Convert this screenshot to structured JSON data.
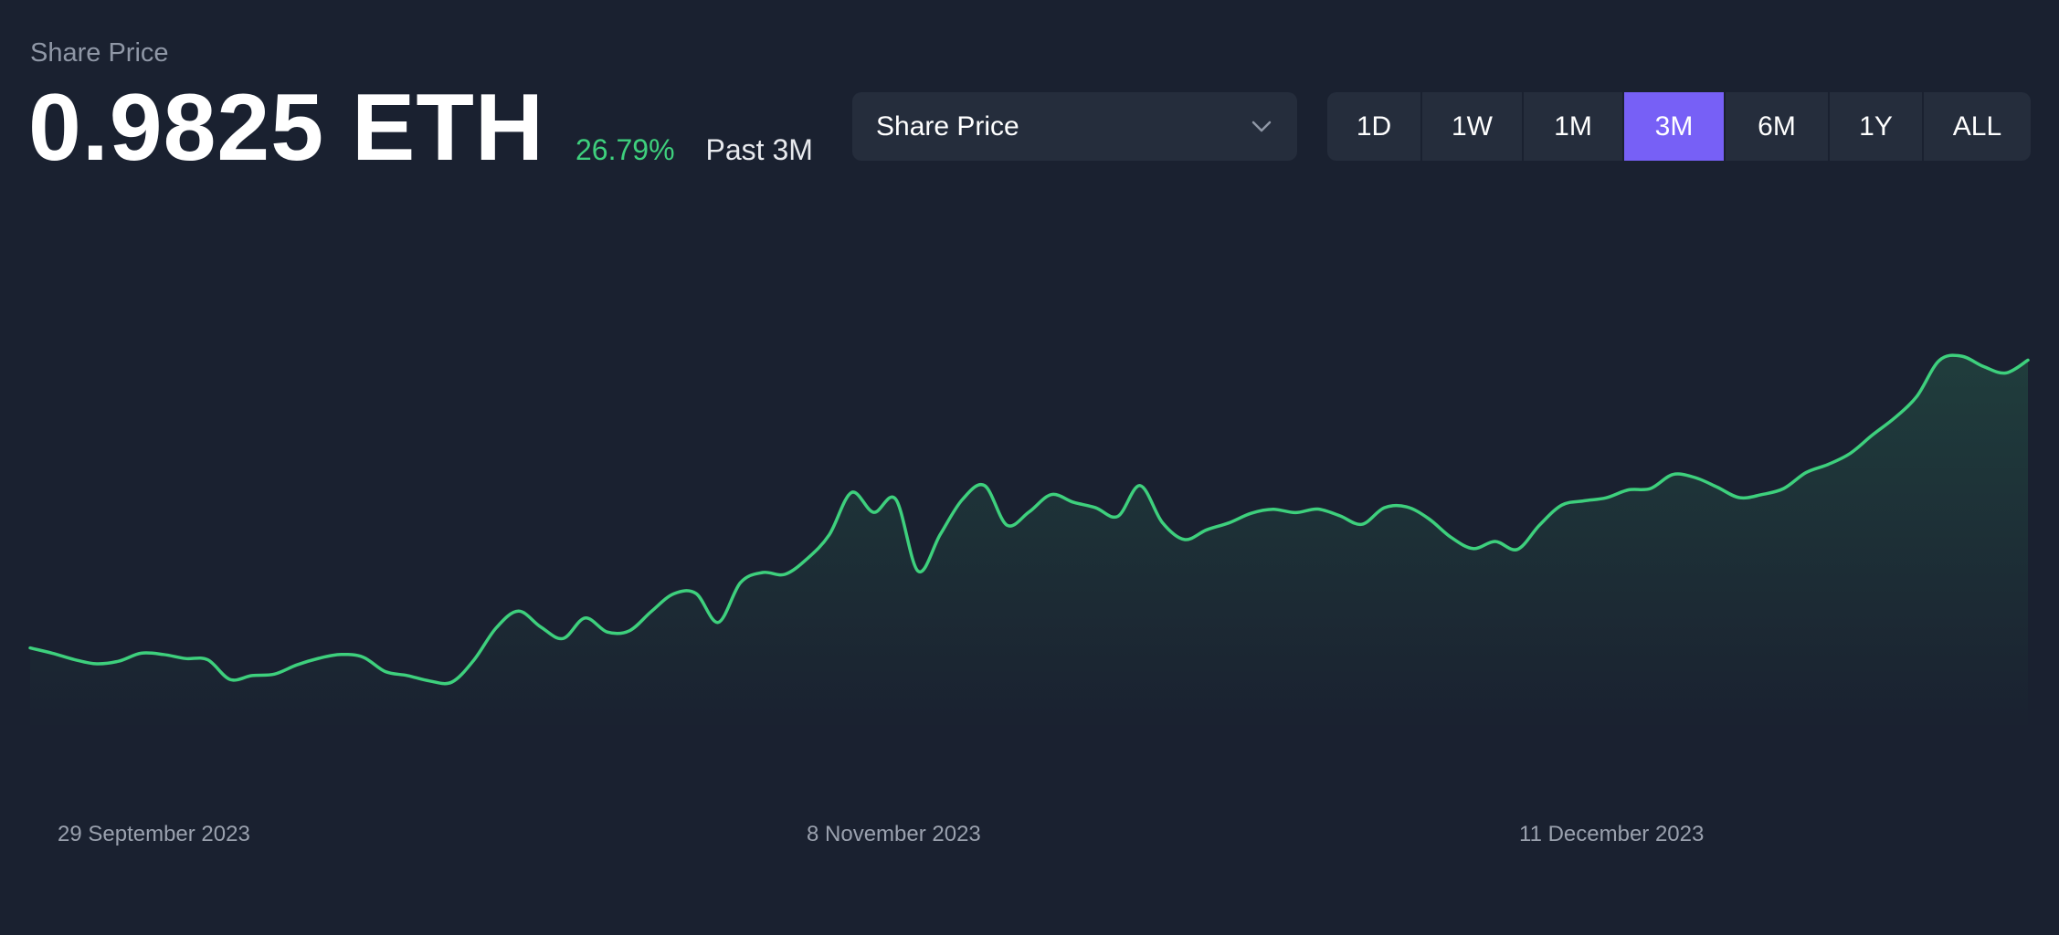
{
  "header": {
    "label": "Share Price",
    "price": "0.9825 ETH",
    "change": "26.79%",
    "period": "Past 3M"
  },
  "metric_select": {
    "selected": "Share Price",
    "icon": "chevron-down-icon"
  },
  "range_buttons": [
    {
      "label": "1D",
      "active": false
    },
    {
      "label": "1W",
      "active": false
    },
    {
      "label": "1M",
      "active": false
    },
    {
      "label": "3M",
      "active": true
    },
    {
      "label": "6M",
      "active": false
    },
    {
      "label": "1Y",
      "active": false
    },
    {
      "label": "ALL",
      "active": false
    }
  ],
  "colors": {
    "background": "#1a2130",
    "line": "#3ed07d",
    "accent": "#7760f6",
    "positive": "#3ed07d"
  },
  "chart_data": {
    "type": "area",
    "x_tick_labels": [
      "29 September 2023",
      "8 November 2023",
      "11 December 2023"
    ],
    "grid": false,
    "legend": "none",
    "ylim": [
      0.55,
      1.1
    ],
    "series": [
      {
        "values": [
          0.7749,
          0.7711,
          0.7665,
          0.7635,
          0.7654,
          0.7711,
          0.7702,
          0.7673,
          0.7664,
          0.7522,
          0.755,
          0.756,
          0.7626,
          0.7674,
          0.7702,
          0.7683,
          0.7579,
          0.755,
          0.7511,
          0.7503,
          0.7664,
          0.7895,
          0.8015,
          0.7901,
          0.7817,
          0.7965,
          0.7864,
          0.7873,
          0.8015,
          0.814,
          0.8142,
          0.7934,
          0.822,
          0.8293,
          0.828,
          0.8392,
          0.8565,
          0.887,
          0.8727,
          0.8821,
          0.8303,
          0.8568,
          0.882,
          0.892,
          0.8635,
          0.873,
          0.8855,
          0.88,
          0.876,
          0.8698,
          0.892,
          0.8655,
          0.8531,
          0.8601,
          0.8651,
          0.872,
          0.8749,
          0.8725,
          0.8751,
          0.8702,
          0.8641,
          0.876,
          0.8767,
          0.8682,
          0.8548,
          0.8466,
          0.8517,
          0.846,
          0.8636,
          0.8779,
          0.881,
          0.8832,
          0.8889,
          0.8899,
          0.9,
          0.8978,
          0.8909,
          0.8833,
          0.8855,
          0.8899,
          0.9014,
          0.9073,
          0.9153,
          0.9286,
          0.9409,
          0.9565,
          0.9822,
          0.9854,
          0.9779,
          0.9732,
          0.9825
        ]
      }
    ]
  }
}
